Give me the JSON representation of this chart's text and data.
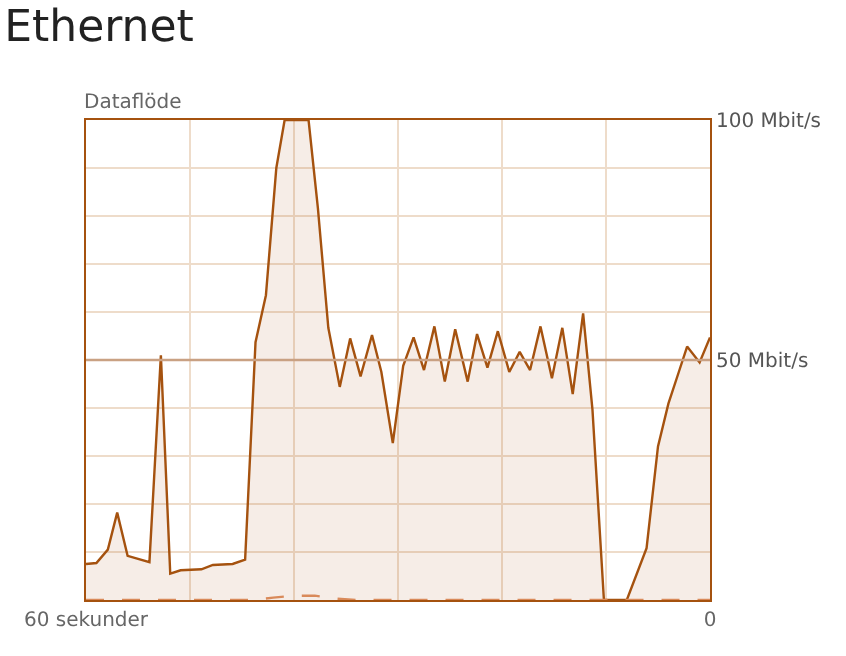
{
  "chart_data": {
    "type": "area",
    "title": "Ethernet",
    "ylabel": "Dataflöde",
    "xlim": [
      60,
      0
    ],
    "ylim": [
      0,
      100
    ],
    "xticks": [
      {
        "value": 60,
        "label": "60 sekunder"
      },
      {
        "value": 50,
        "label": null
      },
      {
        "value": 40,
        "label": null
      },
      {
        "value": 30,
        "label": null
      },
      {
        "value": 20,
        "label": null
      },
      {
        "value": 10,
        "label": null
      },
      {
        "value": 0,
        "label": "0"
      }
    ],
    "yticks": [
      {
        "value": 0,
        "label": null
      },
      {
        "value": 10,
        "label": null
      },
      {
        "value": 20,
        "label": null
      },
      {
        "value": 30,
        "label": null
      },
      {
        "value": 40,
        "label": null
      },
      {
        "value": 50,
        "label": "50 Mbit/s"
      },
      {
        "value": 60,
        "label": null
      },
      {
        "value": 70,
        "label": null
      },
      {
        "value": 80,
        "label": null
      },
      {
        "value": 90,
        "label": null
      },
      {
        "value": 100,
        "label": "100 Mbit/s"
      }
    ],
    "grid": true,
    "ref_lines": [
      {
        "axis": "y",
        "value": 50,
        "color": "#c9a183"
      }
    ],
    "series": [
      {
        "color": "#a5520f",
        "line_style": "solid",
        "x": [
          60,
          59,
          57.9,
          57,
          56,
          53.9,
          52.8,
          51.9,
          50.9,
          48.9,
          47.8,
          45.9,
          44.7,
          43.7,
          42.7,
          41.7,
          40.9,
          38.6,
          37.7,
          36.7,
          35.6,
          34.6,
          33.6,
          32.5,
          31.6,
          30.5,
          29.5,
          28.5,
          27.5,
          26.5,
          25.5,
          24.5,
          23.3,
          22.4,
          21.4,
          20.4,
          19.3,
          18.3,
          17.3,
          16.3,
          15.2,
          14.2,
          13.2,
          12.2,
          11.3,
          10.2,
          8,
          6.1,
          5,
          4,
          3,
          2.2,
          1,
          0
        ],
        "values": [
          7.5,
          7.7,
          10.5,
          18.2,
          9.2,
          7.9,
          51,
          5.5,
          6.2,
          6.4,
          7.3,
          7.5,
          8.4,
          53.7,
          63.5,
          90,
          100,
          100,
          81.6,
          56.7,
          44.4,
          54.5,
          46.6,
          55.2,
          47.5,
          32.7,
          48.8,
          54.7,
          47.9,
          57,
          45.5,
          56.4,
          45.5,
          55.4,
          48.4,
          56,
          47.5,
          51.7,
          47.9,
          57,
          46.2,
          56.7,
          42.9,
          59.7,
          39.6,
          0,
          0,
          10.8,
          32,
          40.9,
          47.5,
          52.8,
          49.5,
          54.7
        ]
      },
      {
        "type": "line",
        "color": "#d98a5a",
        "line_style": "dashed",
        "x": [
          60,
          44,
          42,
          40,
          38,
          36,
          34,
          0
        ],
        "values": [
          0,
          0,
          0.5,
          0.9,
          0.9,
          0.3,
          0,
          0
        ]
      }
    ]
  }
}
